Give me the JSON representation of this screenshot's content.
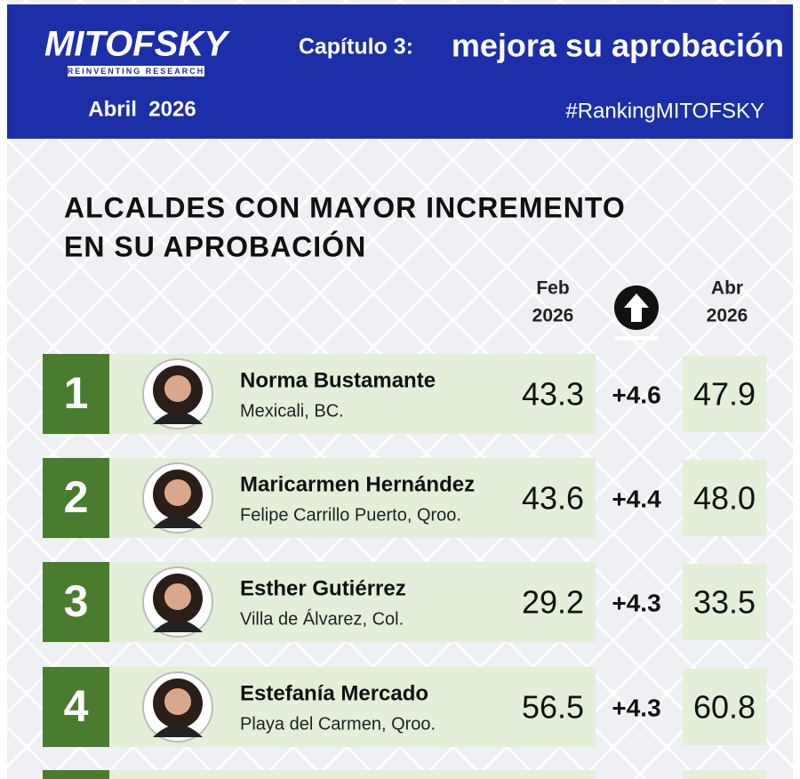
{
  "header": {
    "logo": "MITOFSKY",
    "tagline": "REINVENTING RESEARCH",
    "date": "Abril  2026",
    "chapter": "Capítulo 3:",
    "headline": "mejora su aprobación",
    "hashtag": "#RankingMITOFSKY"
  },
  "title": [
    "ALCALDES CON MAYOR INCREMENTO",
    "EN SU APROBACIÓN"
  ],
  "columns": {
    "before": [
      "Feb",
      "2026"
    ],
    "after": [
      "Abr",
      "2026"
    ]
  },
  "rows": [
    {
      "rank": "1",
      "name": "Norma Bustamante",
      "place": "Mexicali, BC.",
      "before": "43.3",
      "change": "+4.6",
      "after": "47.9"
    },
    {
      "rank": "2",
      "name": "Maricarmen Hernández",
      "place": "Felipe Carrillo Puerto, Qroo.",
      "before": "43.6",
      "change": "+4.4",
      "after": "48.0"
    },
    {
      "rank": "3",
      "name": "Esther Gutiérrez",
      "place": "Villa de Álvarez, Col.",
      "before": "29.2",
      "change": "+4.3",
      "after": "33.5"
    },
    {
      "rank": "4",
      "name": "Estefanía Mercado",
      "place": "Playa del Carmen, Qroo.",
      "before": "56.5",
      "change": "+4.3",
      "after": "60.8"
    }
  ]
}
